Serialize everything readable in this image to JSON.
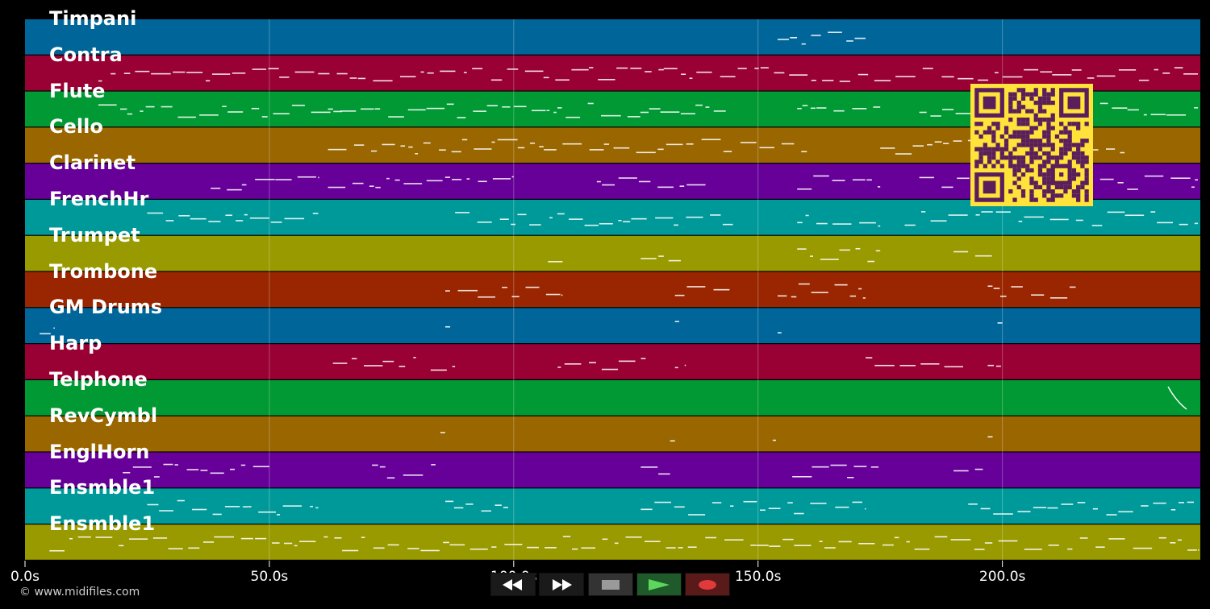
{
  "lanes": [
    {
      "name": "Timpani",
      "color": "#006699"
    },
    {
      "name": "Contra",
      "color": "#990033"
    },
    {
      "name": "Flute",
      "color": "#009933"
    },
    {
      "name": "Cello",
      "color": "#996600"
    },
    {
      "name": "Clarinet",
      "color": "#660099"
    },
    {
      "name": "FrenchHr",
      "color": "#009999"
    },
    {
      "name": "Trumpet",
      "color": "#999900"
    },
    {
      "name": "Trombone",
      "color": "#992600"
    },
    {
      "name": "GM Drums",
      "color": "#006699"
    },
    {
      "name": "Harp",
      "color": "#990033"
    },
    {
      "name": "Telphone",
      "color": "#009933"
    },
    {
      "name": "RevCymbl",
      "color": "#996600"
    },
    {
      "name": "EnglHorn",
      "color": "#660099"
    },
    {
      "name": "Ensmble1",
      "color": "#009999"
    },
    {
      "name": "Ensmble1",
      "color": "#999900"
    }
  ],
  "timeline": {
    "ticks": [
      "0.0s",
      "50.0s",
      "100.0s",
      "150.0s",
      "200.0s"
    ],
    "tick_values": [
      0,
      50,
      100,
      150,
      200
    ],
    "max_seconds": 240.5
  },
  "copyright": "© www.midifiles.com",
  "transport": {
    "rewind_icon": "rewind-icon",
    "forward_icon": "fast-forward-icon",
    "stop_icon": "stop-icon",
    "play_icon": "play-icon",
    "record_icon": "record-icon",
    "colors": {
      "rewind": "#1a1a1a",
      "forward": "#1a1a1a",
      "stop": "#333333",
      "play": "#1f5a2a",
      "record": "#5a1a1a"
    }
  },
  "qr_code": {
    "label": "qr-code",
    "color": "#ffe23a",
    "ink": "#5a1f5a"
  }
}
